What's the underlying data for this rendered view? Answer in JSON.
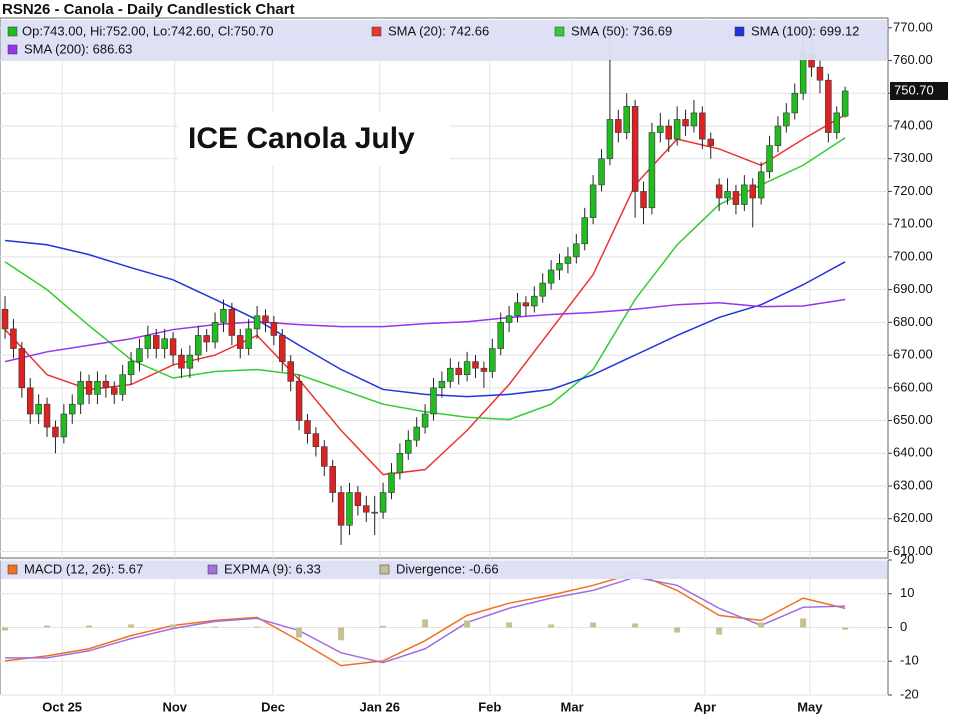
{
  "chart_data": [
    {
      "type": "candlestick",
      "title": "RSN26 - Canola - Daily Candlestick Chart",
      "ohlc_label": "Op:743.00, Hi:752.00, Lo:742.60, Cl:750.70",
      "ohlc_color": "#22bb22",
      "annotation": "ICE Canola July",
      "up_color": "#22bb22",
      "down_color": "#dd2222",
      "candles": [
        [
          684,
          688,
          675,
          678
        ],
        [
          678,
          681,
          669,
          672
        ],
        [
          672,
          674,
          657,
          660
        ],
        [
          660,
          663,
          649,
          652
        ],
        [
          652,
          658,
          649,
          655
        ],
        [
          655,
          657,
          645,
          648
        ],
        [
          648,
          650,
          640,
          645
        ],
        [
          645,
          655,
          643,
          652
        ],
        [
          652,
          658,
          649,
          655
        ],
        [
          655,
          665,
          652,
          662
        ],
        [
          662,
          664,
          655,
          658
        ],
        [
          658,
          665,
          655,
          662
        ],
        [
          662,
          664,
          657,
          660
        ],
        [
          660,
          662,
          655,
          658
        ],
        [
          658,
          667,
          656,
          664
        ],
        [
          664,
          671,
          661,
          668
        ],
        [
          668,
          675,
          665,
          672
        ],
        [
          672,
          679,
          669,
          676
        ],
        [
          676,
          678,
          669,
          672
        ],
        [
          672,
          678,
          669,
          675
        ],
        [
          675,
          677,
          667,
          670
        ],
        [
          670,
          672,
          663,
          666
        ],
        [
          666,
          673,
          663,
          670
        ],
        [
          670,
          679,
          668,
          676
        ],
        [
          676,
          678,
          671,
          674
        ],
        [
          674,
          683,
          672,
          680
        ],
        [
          680,
          687,
          677,
          684
        ],
        [
          684,
          686,
          673,
          676
        ],
        [
          676,
          678,
          669,
          672
        ],
        [
          672,
          681,
          670,
          678
        ],
        [
          678,
          685,
          675,
          682
        ],
        [
          682,
          684,
          677,
          680
        ],
        [
          680,
          682,
          673,
          676
        ],
        [
          676,
          678,
          665,
          668
        ],
        [
          668,
          670,
          659,
          662
        ],
        [
          662,
          664,
          647,
          650
        ],
        [
          650,
          652,
          643,
          646
        ],
        [
          646,
          648,
          639,
          642
        ],
        [
          642,
          644,
          633,
          636
        ],
        [
          636,
          638,
          625,
          628
        ],
        [
          628,
          630,
          612,
          618
        ],
        [
          618,
          631,
          615,
          628
        ],
        [
          628,
          630,
          621,
          624
        ],
        [
          624,
          627,
          619,
          622
        ],
        [
          622,
          627,
          615,
          622
        ],
        [
          622,
          631,
          620,
          628
        ],
        [
          628,
          637,
          626,
          634
        ],
        [
          634,
          643,
          632,
          640
        ],
        [
          640,
          647,
          638,
          644
        ],
        [
          644,
          651,
          642,
          648
        ],
        [
          648,
          655,
          646,
          652
        ],
        [
          652,
          663,
          650,
          660
        ],
        [
          660,
          665,
          657,
          662
        ],
        [
          662,
          669,
          660,
          666
        ],
        [
          666,
          668,
          661,
          664
        ],
        [
          664,
          671,
          662,
          668
        ],
        [
          668,
          670,
          663,
          666
        ],
        [
          666,
          668,
          660,
          665
        ],
        [
          665,
          675,
          663,
          672
        ],
        [
          672,
          683,
          670,
          680
        ],
        [
          680,
          685,
          677,
          682
        ],
        [
          682,
          689,
          680,
          686
        ],
        [
          686,
          688,
          682,
          685
        ],
        [
          685,
          691,
          683,
          688
        ],
        [
          688,
          695,
          686,
          692
        ],
        [
          692,
          699,
          690,
          696
        ],
        [
          696,
          701,
          693,
          698
        ],
        [
          698,
          703,
          695,
          700
        ],
        [
          700,
          707,
          698,
          704
        ],
        [
          704,
          715,
          702,
          712
        ],
        [
          712,
          725,
          710,
          722
        ],
        [
          722,
          733,
          720,
          730
        ],
        [
          730,
          768,
          728,
          742
        ],
        [
          742,
          745,
          735,
          738
        ],
        [
          738,
          750,
          736,
          746
        ],
        [
          746,
          748,
          712,
          720
        ],
        [
          720,
          723,
          710,
          715
        ],
        [
          715,
          741,
          713,
          738
        ],
        [
          738,
          744,
          735,
          740
        ],
        [
          740,
          742,
          732,
          736
        ],
        [
          736,
          746,
          734,
          742
        ],
        [
          742,
          745,
          737,
          740
        ],
        [
          740,
          748,
          738,
          744
        ],
        [
          744,
          746,
          733,
          736
        ],
        [
          736,
          738,
          730,
          734
        ],
        [
          722,
          724,
          714,
          718
        ],
        [
          718,
          724,
          716,
          720
        ],
        [
          720,
          722,
          713,
          716
        ],
        [
          716,
          725,
          714,
          722
        ],
        [
          722,
          724,
          709,
          718
        ],
        [
          718,
          729,
          716,
          726
        ],
        [
          726,
          737,
          724,
          734
        ],
        [
          734,
          743,
          732,
          740
        ],
        [
          740,
          747,
          738,
          744
        ],
        [
          744,
          753,
          742,
          750
        ],
        [
          750,
          772,
          748,
          762
        ],
        [
          762,
          770,
          755,
          758
        ],
        [
          758,
          760,
          750,
          754
        ],
        [
          754,
          756,
          735,
          738
        ],
        [
          738,
          746,
          736,
          744
        ],
        [
          743,
          752,
          742.6,
          750.7
        ]
      ],
      "line_x": [
        0,
        5,
        10,
        15,
        20,
        25,
        30,
        35,
        40,
        45,
        50,
        55,
        60,
        65,
        70,
        75,
        80,
        85,
        90,
        95,
        100
      ],
      "series": [
        {
          "name": "SMA (20): 742.66",
          "color": "#ee3333",
          "values": [
            677.8,
            664,
            659.5,
            661,
            667,
            670,
            676,
            662.5,
            647,
            633.5,
            635,
            647,
            661,
            677.8,
            694.6,
            722,
            736,
            733,
            728,
            736,
            743.4
          ]
        },
        {
          "name": "SMA (50): 736.69",
          "color": "#33cc33",
          "values": [
            698.5,
            690,
            679,
            668.6,
            663,
            665,
            665.6,
            664,
            659.5,
            655,
            652.7,
            651,
            650.3,
            655,
            665.6,
            687,
            703.7,
            716,
            722,
            728,
            736.4
          ]
        },
        {
          "name": "SMA (100): 699.12",
          "color": "#2233dd",
          "values": [
            705,
            703.7,
            700.7,
            696.7,
            693,
            687,
            680.8,
            673,
            665.6,
            659.5,
            658,
            657.3,
            658,
            659.5,
            664,
            670,
            676,
            681.5,
            685.4,
            691.5,
            698.5
          ]
        },
        {
          "name": "SMA (200): 686.63",
          "color": "#9933ee",
          "values": [
            668,
            671,
            673,
            675,
            677.8,
            679.3,
            680.2,
            679.3,
            678.7,
            678.7,
            679.6,
            680.2,
            681.5,
            682.4,
            683,
            684,
            685.4,
            686,
            684.8,
            685,
            687
          ]
        }
      ],
      "last_label": {
        "value": 750.7,
        "label": "750.70"
      },
      "xlim": [
        -0.6,
        105.1
      ],
      "xticks": [
        {
          "value": 6.8,
          "label": "Oct 25"
        },
        {
          "value": 20.2,
          "label": "Nov"
        },
        {
          "value": 31.9,
          "label": "Dec"
        },
        {
          "value": 44.6,
          "label": "Jan 26"
        },
        {
          "value": 57.7,
          "label": "Feb"
        },
        {
          "value": 67.5,
          "label": "Mar"
        },
        {
          "value": 83.3,
          "label": "Apr"
        },
        {
          "value": 95.8,
          "label": "May"
        }
      ],
      "ylim": [
        608,
        773
      ],
      "yticks": [
        {
          "value": 610,
          "label": "610.00"
        },
        {
          "value": 620,
          "label": "620.00"
        },
        {
          "value": 630,
          "label": "630.00"
        },
        {
          "value": 640,
          "label": "640.00"
        },
        {
          "value": 650,
          "label": "650.00"
        },
        {
          "value": 660,
          "label": "660.00"
        },
        {
          "value": 670,
          "label": "670.00"
        },
        {
          "value": 680,
          "label": "680.00"
        },
        {
          "value": 690,
          "label": "690.00"
        },
        {
          "value": 700,
          "label": "700.00"
        },
        {
          "value": 710,
          "label": "710.00"
        },
        {
          "value": 720,
          "label": "720.00"
        },
        {
          "value": 730,
          "label": "730.00"
        },
        {
          "value": 740,
          "label": "740.00"
        },
        {
          "value": 750,
          "label": "750.00"
        },
        {
          "value": 760,
          "label": "760.00"
        },
        {
          "value": 770,
          "label": "770.00"
        }
      ],
      "grid": true
    },
    {
      "type": "line",
      "x": [
        0,
        5,
        10,
        15,
        20,
        25,
        30,
        35,
        40,
        45,
        50,
        55,
        60,
        65,
        70,
        75,
        80,
        85,
        90,
        95,
        100
      ],
      "series": [
        {
          "name": "MACD (12, 26): 5.67",
          "color": "#f07020",
          "values": [
            -9.9,
            -8.4,
            -6.3,
            -2.4,
            0.6,
            2.1,
            3,
            -3.9,
            -11.3,
            -9.9,
            -3.9,
            3.6,
            7.2,
            9.6,
            12.5,
            16.1,
            11,
            3.6,
            2.1,
            8.7,
            5.67
          ]
        },
        {
          "name": "EXPMA (9): 6.33",
          "color": "#a070e0",
          "values": [
            -9,
            -9,
            -6.9,
            -3.3,
            -0.3,
            1.8,
            2.7,
            -0.9,
            -7.5,
            -10.4,
            -6.3,
            1.5,
            5.7,
            8.7,
            11,
            14.9,
            12.5,
            5.7,
            0.6,
            6,
            6.33
          ]
        },
        {
          "name": "Divergence: -0.66",
          "color": "#c8c090",
          "bars": true,
          "values": [
            -0.9,
            0.6,
            0.6,
            0.9,
            0.9,
            0.3,
            0.3,
            -3,
            -3.8,
            0.5,
            2.4,
            2.1,
            1.5,
            0.9,
            1.5,
            1.2,
            -1.5,
            -2.1,
            1.5,
            2.7,
            -0.66
          ]
        }
      ],
      "xlim": [
        -0.6,
        105.1
      ],
      "ylim": [
        -20,
        20
      ],
      "yticks": [
        20,
        10,
        0,
        -10,
        -20
      ],
      "grid": true
    }
  ]
}
